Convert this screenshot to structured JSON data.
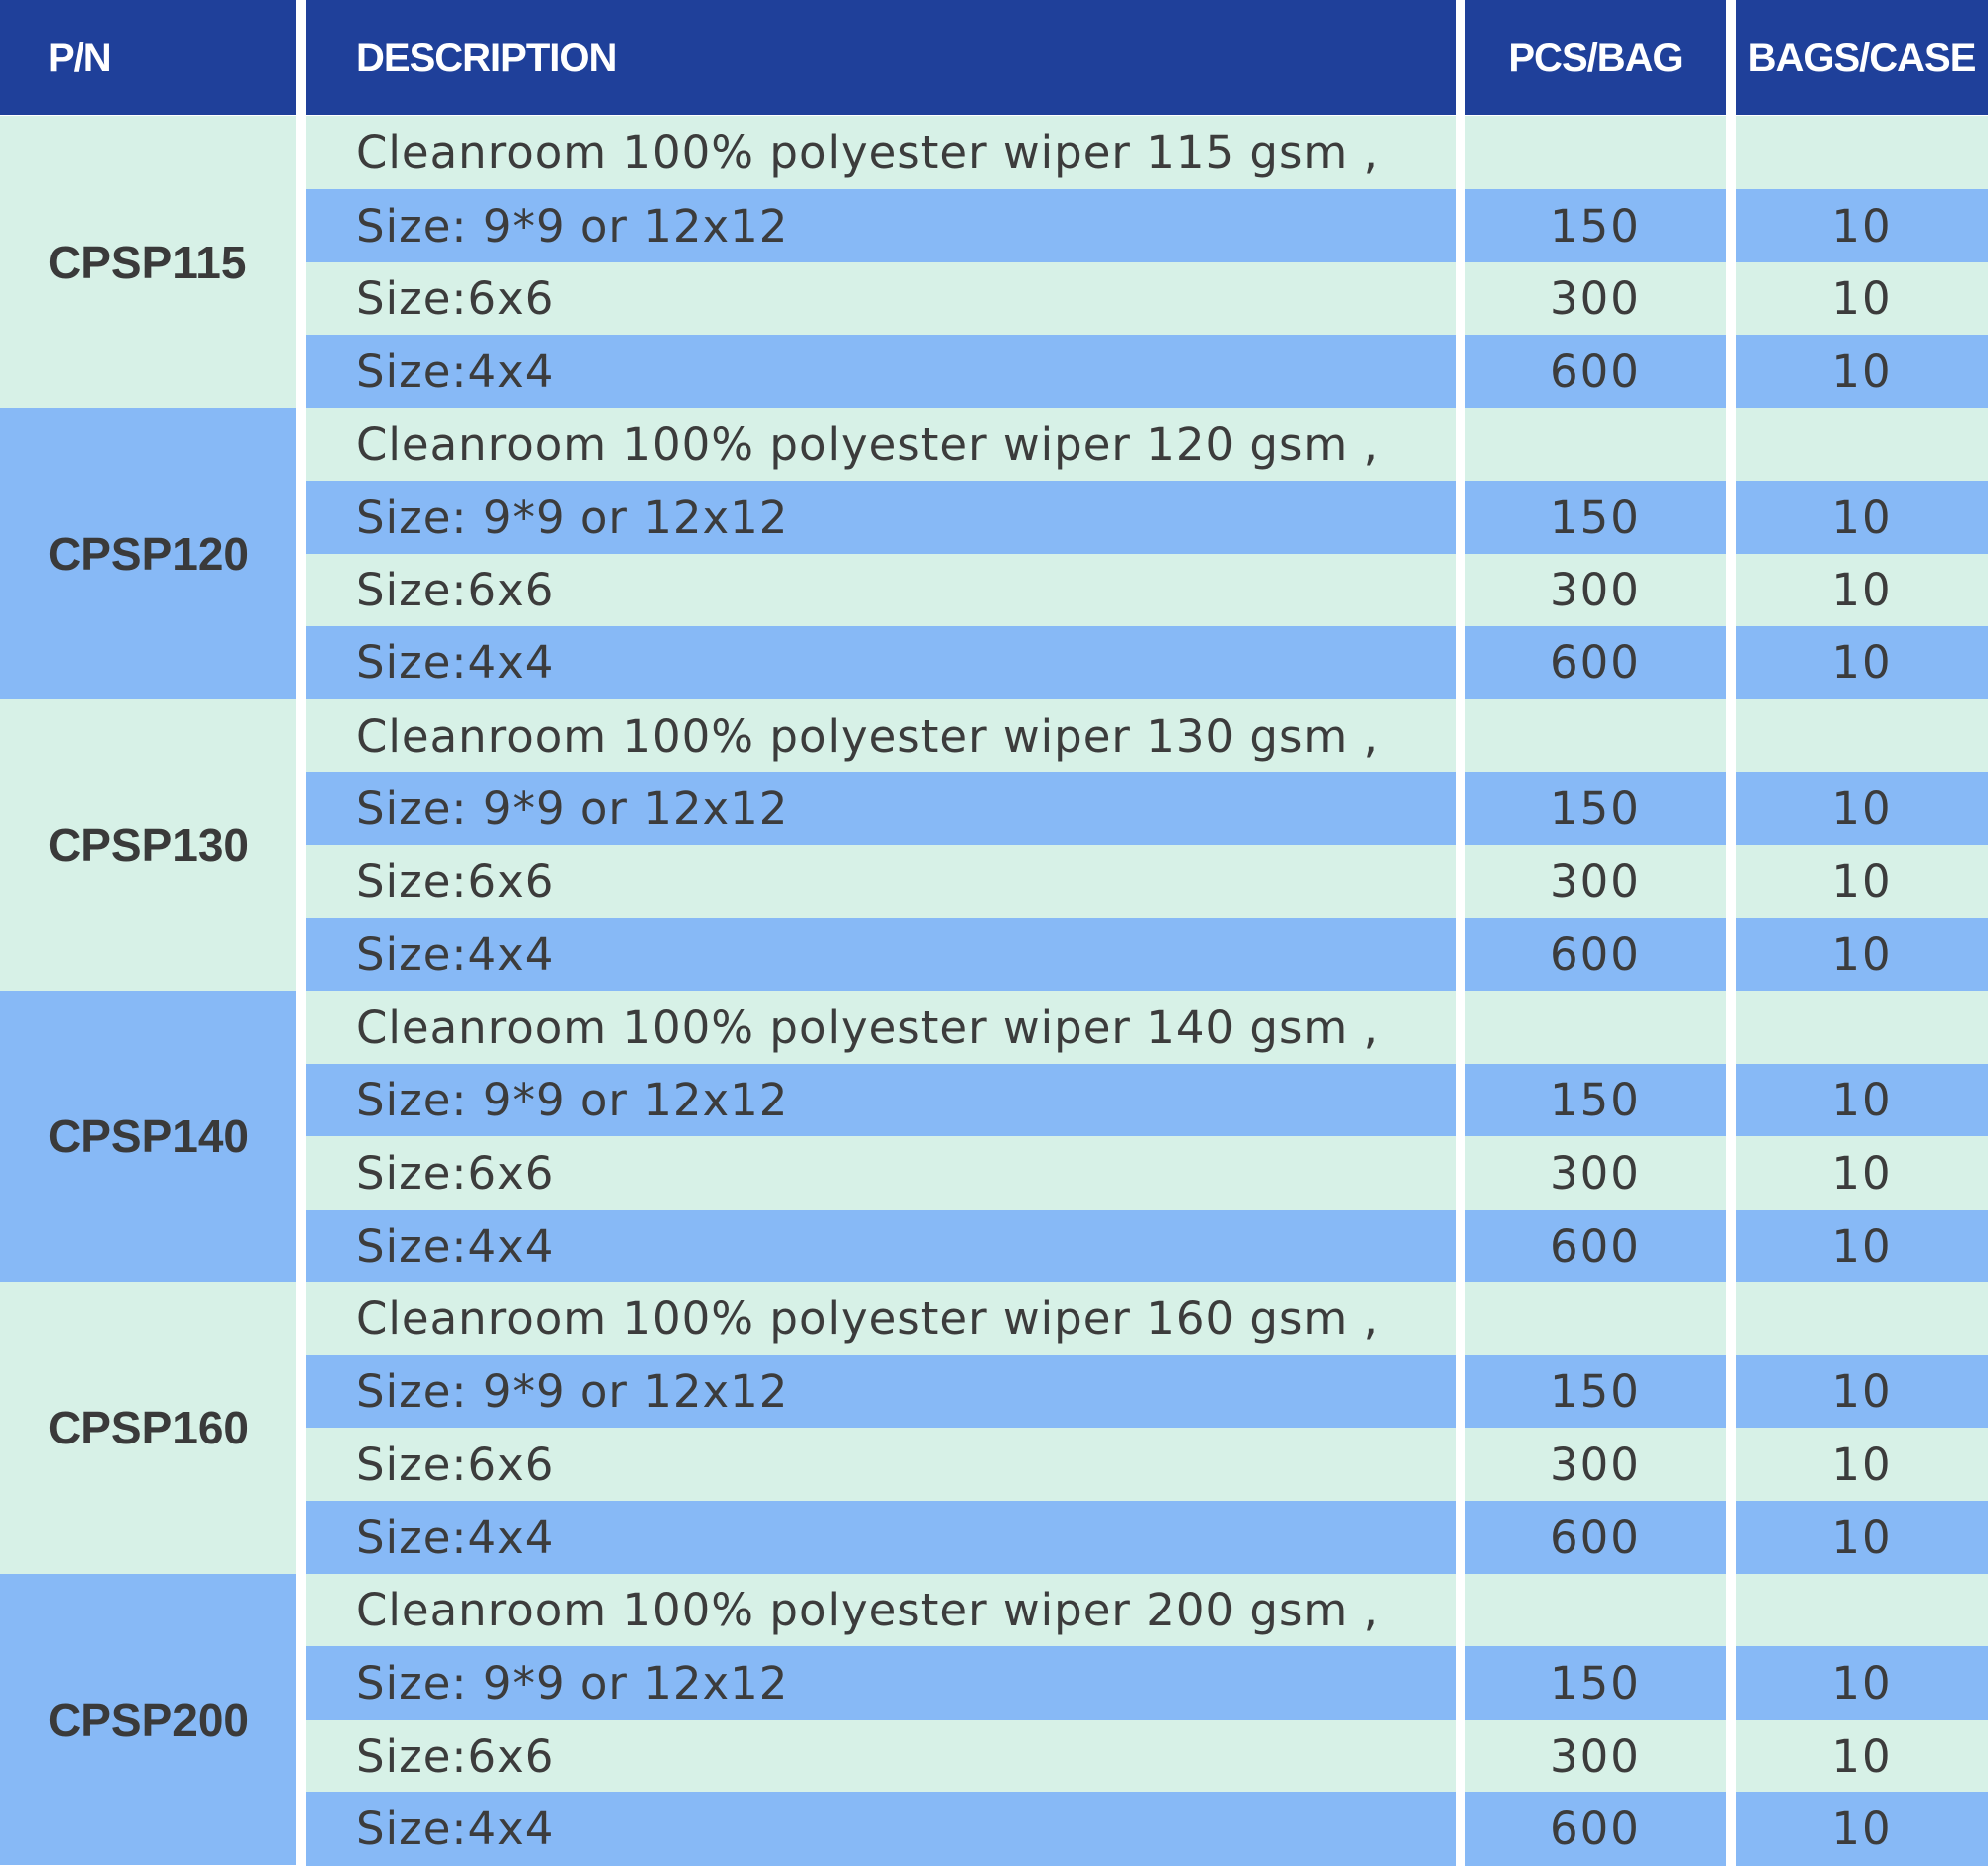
{
  "headers": {
    "pn": "P/N",
    "description": "DESCRIPTION",
    "pcs_per_bag": "PCS/BAG",
    "bags_per_case": "BAGS/CASE"
  },
  "colors": {
    "header_bg": "#1f409a",
    "light_row": "#d7f1e7",
    "blue_row": "#87b9f6",
    "text": "#3c3c3c"
  },
  "groups": [
    {
      "pn": "CPSP115",
      "rows": [
        {
          "description": "Cleanroom 100% polyester wiper 115 gsm ,",
          "pcs": "",
          "bags": ""
        },
        {
          "description": "Size: 9*9 or 12x12",
          "pcs": "150",
          "bags": "10"
        },
        {
          "description": "Size:6x6",
          "pcs": "300",
          "bags": "10"
        },
        {
          "description": "Size:4x4",
          "pcs": "600",
          "bags": "10"
        }
      ]
    },
    {
      "pn": "CPSP120",
      "rows": [
        {
          "description": "Cleanroom 100% polyester wiper 120 gsm ,",
          "pcs": "",
          "bags": ""
        },
        {
          "description": "Size: 9*9 or 12x12",
          "pcs": "150",
          "bags": "10"
        },
        {
          "description": "Size:6x6",
          "pcs": "300",
          "bags": "10"
        },
        {
          "description": "Size:4x4",
          "pcs": "600",
          "bags": "10"
        }
      ]
    },
    {
      "pn": "CPSP130",
      "rows": [
        {
          "description": "Cleanroom 100% polyester wiper 130 gsm ,",
          "pcs": "",
          "bags": ""
        },
        {
          "description": "Size: 9*9 or 12x12",
          "pcs": "150",
          "bags": "10"
        },
        {
          "description": "Size:6x6",
          "pcs": "300",
          "bags": "10"
        },
        {
          "description": "Size:4x4",
          "pcs": "600",
          "bags": "10"
        }
      ]
    },
    {
      "pn": "CPSP140",
      "rows": [
        {
          "description": "Cleanroom 100% polyester wiper 140 gsm ,",
          "pcs": "",
          "bags": ""
        },
        {
          "description": "Size: 9*9 or 12x12",
          "pcs": "150",
          "bags": "10"
        },
        {
          "description": "Size:6x6",
          "pcs": "300",
          "bags": "10"
        },
        {
          "description": "Size:4x4",
          "pcs": "600",
          "bags": "10"
        }
      ]
    },
    {
      "pn": "CPSP160",
      "rows": [
        {
          "description": "Cleanroom 100% polyester wiper 160 gsm ,",
          "pcs": "",
          "bags": ""
        },
        {
          "description": "Size: 9*9 or 12x12",
          "pcs": "150",
          "bags": "10"
        },
        {
          "description": "Size:6x6",
          "pcs": "300",
          "bags": "10"
        },
        {
          "description": "Size:4x4",
          "pcs": "600",
          "bags": "10"
        }
      ]
    },
    {
      "pn": "CPSP200",
      "rows": [
        {
          "description": "Cleanroom 100% polyester wiper 200 gsm ,",
          "pcs": "",
          "bags": ""
        },
        {
          "description": "Size: 9*9 or 12x12",
          "pcs": "150",
          "bags": "10"
        },
        {
          "description": "Size:6x6",
          "pcs": "300",
          "bags": "10"
        },
        {
          "description": "Size:4x4",
          "pcs": "600",
          "bags": "10"
        }
      ]
    }
  ]
}
